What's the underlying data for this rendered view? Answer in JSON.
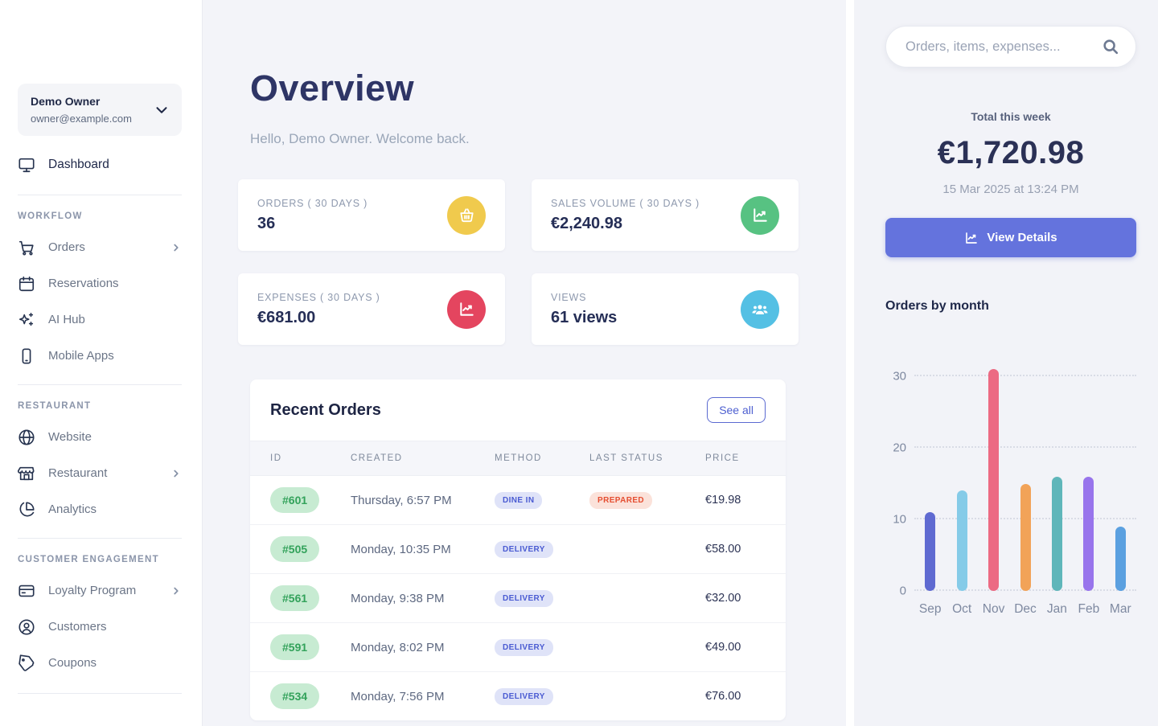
{
  "sidebar": {
    "user": {
      "name": "Demo Owner",
      "email": "owner@example.com"
    },
    "dashboard_label": "Dashboard",
    "sections": [
      {
        "title": "WORKFLOW",
        "items": [
          {
            "label": "Orders"
          },
          {
            "label": "Reservations"
          },
          {
            "label": "AI Hub"
          },
          {
            "label": "Mobile Apps"
          }
        ]
      },
      {
        "title": "RESTAURANT",
        "items": [
          {
            "label": "Website"
          },
          {
            "label": "Restaurant"
          },
          {
            "label": "Analytics"
          }
        ]
      },
      {
        "title": "CUSTOMER ENGAGEMENT",
        "items": [
          {
            "label": "Loyalty Program"
          },
          {
            "label": "Customers"
          },
          {
            "label": "Coupons"
          }
        ]
      }
    ]
  },
  "main": {
    "title": "Overview",
    "subtitle": "Hello, Demo Owner. Welcome back.",
    "stats": [
      {
        "label": "ORDERS ( 30 DAYS )",
        "value": "36",
        "icon": "basket-icon",
        "color": "#f0ca4d"
      },
      {
        "label": "SALES VOLUME ( 30 DAYS )",
        "value": "€2,240.98",
        "icon": "chart-line-icon",
        "color": "#57c282"
      },
      {
        "label": "EXPENSES ( 30 DAYS )",
        "value": "€681.00",
        "icon": "chart-line-icon",
        "color": "#e4455f"
      },
      {
        "label": "VIEWS",
        "value": "61 views",
        "icon": "users-icon",
        "color": "#54c0e4"
      }
    ],
    "recent_orders": {
      "title": "Recent Orders",
      "see_all_label": "See all",
      "columns": [
        "ID",
        "CREATED",
        "METHOD",
        "LAST STATUS",
        "PRICE"
      ],
      "rows": [
        {
          "id": "#601",
          "created": "Thursday, 6:57 PM",
          "method": "DINE IN",
          "status": "PREPARED",
          "price": "€19.98"
        },
        {
          "id": "#505",
          "created": "Monday, 10:35 PM",
          "method": "DELIVERY",
          "status": "",
          "price": "€58.00"
        },
        {
          "id": "#561",
          "created": "Monday, 9:38 PM",
          "method": "DELIVERY",
          "status": "",
          "price": "€32.00"
        },
        {
          "id": "#591",
          "created": "Monday, 8:02 PM",
          "method": "DELIVERY",
          "status": "",
          "price": "€49.00"
        },
        {
          "id": "#534",
          "created": "Monday, 7:56 PM",
          "method": "DELIVERY",
          "status": "",
          "price": "€76.00"
        }
      ]
    }
  },
  "right_panel": {
    "search_placeholder": "Orders, items, expenses...",
    "total_label": "Total this week",
    "total_value": "€1,720.98",
    "total_date": "15 Mar 2025 at 13:24 PM",
    "view_details_label": "View Details",
    "chart_title": "Orders by month"
  },
  "chart_data": {
    "type": "bar",
    "title": "Orders by month",
    "categories": [
      "Sep",
      "Oct",
      "Nov",
      "Dec",
      "Jan",
      "Feb",
      "Mar"
    ],
    "values": [
      11,
      14,
      31,
      15,
      16,
      16,
      9
    ],
    "colors": [
      "#5f6ad1",
      "#85cbe8",
      "#ec6a83",
      "#f2a358",
      "#5fb6ba",
      "#9874ec",
      "#5ba0e0"
    ],
    "yticks": [
      0,
      10,
      20,
      30
    ],
    "ylim": [
      0,
      31
    ],
    "xlabel": "",
    "ylabel": "",
    "grid": "dotted-horizontal",
    "legend": false
  }
}
